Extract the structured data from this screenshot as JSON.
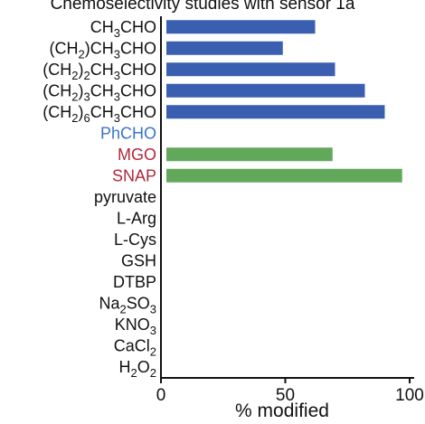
{
  "chart_data": {
    "type": "bar",
    "orientation": "horizontal",
    "title": "Chemoselectivity studies with sensor 1a",
    "xlabel": "% modified",
    "xlim": [
      0,
      100
    ],
    "xticks": [
      0,
      50,
      100
    ],
    "grid": false,
    "colors": {
      "aldehyde_bar": "#3a5fb0",
      "dicarbonyl_bar": "#62a85a",
      "label_default": "#111111",
      "label_aryl": "#3a74c7",
      "label_dicarbonyl": "#b0283a"
    },
    "categories": [
      {
        "label": "CH3CHO",
        "segments": [
          {
            "t": "CH"
          },
          {
            "t": "3",
            "sub": true
          },
          {
            "t": "CHO"
          }
        ],
        "value": 62,
        "color": "#3a5fb0",
        "label_color": "#111111"
      },
      {
        "label": "(CH2)CH3CHO",
        "segments": [
          {
            "t": "(CH"
          },
          {
            "t": "2",
            "sub": true
          },
          {
            "t": ")CH"
          },
          {
            "t": "3",
            "sub": true
          },
          {
            "t": "CHO"
          }
        ],
        "value": 49,
        "color": "#3a5fb0",
        "label_color": "#111111"
      },
      {
        "label": "(CH2)2CH3CHO",
        "segments": [
          {
            "t": "(CH"
          },
          {
            "t": "2",
            "sub": true
          },
          {
            "t": ")"
          },
          {
            "t": "2",
            "sub": true
          },
          {
            "t": "CH"
          },
          {
            "t": "3",
            "sub": true
          },
          {
            "t": "CHO"
          }
        ],
        "value": 70,
        "color": "#3a5fb0",
        "label_color": "#111111"
      },
      {
        "label": "(CH2)3CH3CHO",
        "segments": [
          {
            "t": "(CH"
          },
          {
            "t": "2",
            "sub": true
          },
          {
            "t": ")"
          },
          {
            "t": "3",
            "sub": true
          },
          {
            "t": "CH"
          },
          {
            "t": "3",
            "sub": true
          },
          {
            "t": "CHO"
          }
        ],
        "value": 82,
        "color": "#3a5fb0",
        "label_color": "#111111"
      },
      {
        "label": "(CH2)6CH3CHO",
        "segments": [
          {
            "t": "(CH"
          },
          {
            "t": "2",
            "sub": true
          },
          {
            "t": ")"
          },
          {
            "t": "6",
            "sub": true
          },
          {
            "t": "CH"
          },
          {
            "t": "3",
            "sub": true
          },
          {
            "t": "CHO"
          }
        ],
        "value": 90,
        "color": "#3a5fb0",
        "label_color": "#111111"
      },
      {
        "label": "PhCHO",
        "segments": [
          {
            "t": "PhCHO"
          }
        ],
        "value": 0,
        "color": "#3a5fb0",
        "label_color": "#3a74c7"
      },
      {
        "label": "MGO",
        "segments": [
          {
            "t": "MGO"
          }
        ],
        "value": 69,
        "color": "#62a85a",
        "label_color": "#b0283a"
      },
      {
        "label": "SNAP",
        "segments": [
          {
            "t": "SNAP"
          }
        ],
        "value": 97,
        "color": "#62a85a",
        "label_color": "#b0283a"
      },
      {
        "label": "pyruvate",
        "segments": [
          {
            "t": "pyruvate"
          }
        ],
        "value": 0,
        "color": "#3a5fb0",
        "label_color": "#111111"
      },
      {
        "label": "L-Arg",
        "segments": [
          {
            "t": "L-Arg"
          }
        ],
        "value": 0,
        "color": "#3a5fb0",
        "label_color": "#111111"
      },
      {
        "label": "L-Cys",
        "segments": [
          {
            "t": "L-Cys"
          }
        ],
        "value": 0,
        "color": "#3a5fb0",
        "label_color": "#111111"
      },
      {
        "label": "GSH",
        "segments": [
          {
            "t": "GSH"
          }
        ],
        "value": 0,
        "color": "#3a5fb0",
        "label_color": "#111111"
      },
      {
        "label": "DTBP",
        "segments": [
          {
            "t": "DTBP"
          }
        ],
        "value": 0,
        "color": "#3a5fb0",
        "label_color": "#111111"
      },
      {
        "label": "Na2SO3",
        "segments": [
          {
            "t": "Na"
          },
          {
            "t": "2",
            "sub": true
          },
          {
            "t": "SO"
          },
          {
            "t": "3",
            "sub": true
          }
        ],
        "value": 0,
        "color": "#3a5fb0",
        "label_color": "#111111"
      },
      {
        "label": "KNO3",
        "segments": [
          {
            "t": "KNO"
          },
          {
            "t": "3",
            "sub": true
          }
        ],
        "value": 0,
        "color": "#3a5fb0",
        "label_color": "#111111"
      },
      {
        "label": "CaCl2",
        "segments": [
          {
            "t": "CaCl"
          },
          {
            "t": "2",
            "sub": true
          }
        ],
        "value": 0,
        "color": "#3a5fb0",
        "label_color": "#111111"
      },
      {
        "label": "H2O2",
        "segments": [
          {
            "t": "H"
          },
          {
            "t": "2",
            "sub": true
          },
          {
            "t": "O"
          },
          {
            "t": "2",
            "sub": true
          }
        ],
        "value": 0,
        "color": "#3a5fb0",
        "label_color": "#111111"
      }
    ]
  }
}
